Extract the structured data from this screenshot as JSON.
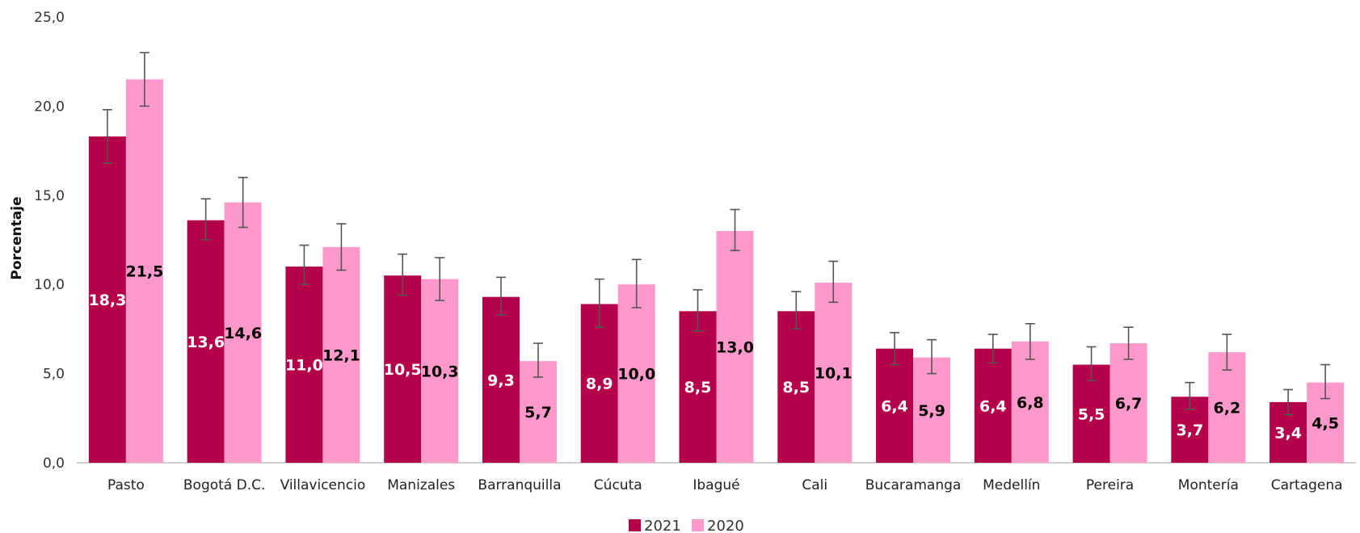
{
  "chart_data": {
    "type": "bar",
    "title": "",
    "xlabel": "",
    "ylabel": "Porcentaje",
    "ylim": [
      0,
      25
    ],
    "yticks": [
      "0,0",
      "5,0",
      "10,0",
      "15,0",
      "20,0",
      "25,0"
    ],
    "ytick_values": [
      0,
      5,
      10,
      15,
      20,
      25
    ],
    "categories": [
      "Pasto",
      "Bogotá D.C.",
      "Villavicencio",
      "Manizales",
      "Barranquilla",
      "Cúcuta",
      "Ibagué",
      "Cali",
      "Bucaramanga",
      "Medellín",
      "Pereira",
      "Montería",
      "Cartagena"
    ],
    "series": [
      {
        "name": "2021",
        "color": "#b5004a",
        "label_color": "#ffffff",
        "values": [
          18.3,
          13.6,
          11.0,
          10.5,
          9.3,
          8.9,
          8.5,
          8.5,
          6.4,
          6.4,
          5.5,
          3.7,
          3.4
        ],
        "labels": [
          "18,3",
          "13,6",
          "11,0",
          "10,5",
          "9,3",
          "8,9",
          "8,5",
          "8,5",
          "6,4",
          "6,4",
          "5,5",
          "3,7",
          "3,4"
        ],
        "error_low": [
          16.8,
          12.5,
          10.0,
          9.4,
          8.3,
          7.6,
          7.4,
          7.5,
          5.5,
          5.6,
          4.6,
          3.0,
          2.7
        ],
        "error_high": [
          19.8,
          14.8,
          12.2,
          11.7,
          10.4,
          10.3,
          9.7,
          9.6,
          7.3,
          7.2,
          6.5,
          4.5,
          4.1
        ]
      },
      {
        "name": "2020",
        "color": "#ff99cc",
        "label_color": "#000000",
        "values": [
          21.5,
          14.6,
          12.1,
          10.3,
          5.7,
          10.0,
          13.0,
          10.1,
          5.9,
          6.8,
          6.7,
          6.2,
          4.5
        ],
        "labels": [
          "21,5",
          "14,6",
          "12,1",
          "10,3",
          "5,7",
          "10,0",
          "13,0",
          "10,1",
          "5,9",
          "6,8",
          "6,7",
          "6,2",
          "4,5"
        ],
        "error_low": [
          20.0,
          13.2,
          10.8,
          9.1,
          4.8,
          8.7,
          11.9,
          9.0,
          5.0,
          5.8,
          5.8,
          5.2,
          3.6
        ],
        "error_high": [
          23.0,
          16.0,
          13.4,
          11.5,
          6.7,
          11.4,
          14.2,
          11.3,
          6.9,
          7.8,
          7.6,
          7.2,
          5.5
        ]
      }
    ],
    "legend": {
      "position": "bottom",
      "items": [
        "2021",
        "2020"
      ]
    },
    "grid": false,
    "error_bar_color": "#555555"
  }
}
